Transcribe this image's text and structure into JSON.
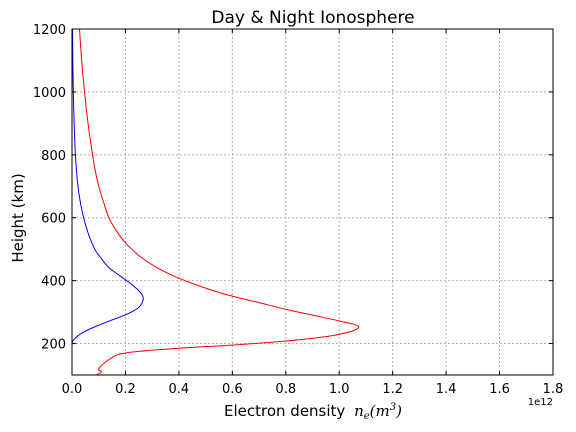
{
  "chart_data": {
    "type": "line",
    "title": "Day & Night Ionosphere",
    "xlabel": "Electron density",
    "xlabel_math": "n",
    "xlabel_math_sub": "e",
    "xlabel_math_paren": "(m",
    "xlabel_math_sup": "3",
    "xlabel_math_close": ")",
    "ylabel": "Height (km)",
    "x_offset_label": "1e12",
    "xlim": [
      0,
      1.8
    ],
    "ylim": [
      100,
      1200
    ],
    "xticks": [
      "0.0",
      "0.2",
      "0.4",
      "0.6",
      "0.8",
      "1.0",
      "1.2",
      "1.4",
      "1.6",
      "1.8"
    ],
    "yticks": [
      "200",
      "400",
      "600",
      "800",
      "1000",
      "1200"
    ],
    "grid": true,
    "series": [
      {
        "color": "#ff0000",
        "points": [
          [
            0.09,
            100
          ],
          [
            0.11,
            110
          ],
          [
            0.1,
            120
          ],
          [
            0.14,
            150
          ],
          [
            0.2,
            170
          ],
          [
            0.4,
            185
          ],
          [
            0.6,
            195
          ],
          [
            0.8,
            208
          ],
          [
            0.95,
            222
          ],
          [
            1.03,
            235
          ],
          [
            1.07,
            248
          ],
          [
            1.065,
            258
          ],
          [
            1.02,
            268
          ],
          [
            0.93,
            285
          ],
          [
            0.82,
            305
          ],
          [
            0.7,
            330
          ],
          [
            0.58,
            355
          ],
          [
            0.47,
            385
          ],
          [
            0.38,
            415
          ],
          [
            0.31,
            445
          ],
          [
            0.25,
            480
          ],
          [
            0.2,
            520
          ],
          [
            0.165,
            560
          ],
          [
            0.138,
            600
          ],
          [
            0.118,
            650
          ],
          [
            0.1,
            700
          ],
          [
            0.087,
            750
          ],
          [
            0.077,
            800
          ],
          [
            0.068,
            850
          ],
          [
            0.06,
            900
          ],
          [
            0.053,
            950
          ],
          [
            0.047,
            1000
          ],
          [
            0.041,
            1050
          ],
          [
            0.036,
            1100
          ],
          [
            0.032,
            1150
          ],
          [
            0.028,
            1200
          ]
        ]
      },
      {
        "color": "#0000ff",
        "points": [
          [
            0.0,
            100
          ],
          [
            0.0,
            195
          ],
          [
            0.01,
            215
          ],
          [
            0.04,
            235
          ],
          [
            0.09,
            255
          ],
          [
            0.15,
            275
          ],
          [
            0.21,
            295
          ],
          [
            0.25,
            315
          ],
          [
            0.265,
            335
          ],
          [
            0.265,
            350
          ],
          [
            0.25,
            368
          ],
          [
            0.22,
            390
          ],
          [
            0.18,
            415
          ],
          [
            0.14,
            440
          ],
          [
            0.11,
            470
          ],
          [
            0.085,
            500
          ],
          [
            0.065,
            540
          ],
          [
            0.05,
            580
          ],
          [
            0.038,
            620
          ],
          [
            0.029,
            660
          ],
          [
            0.021,
            710
          ],
          [
            0.015,
            770
          ],
          [
            0.011,
            830
          ],
          [
            0.008,
            900
          ],
          [
            0.005,
            1000
          ],
          [
            0.003,
            1100
          ],
          [
            0.002,
            1200
          ]
        ]
      }
    ]
  }
}
